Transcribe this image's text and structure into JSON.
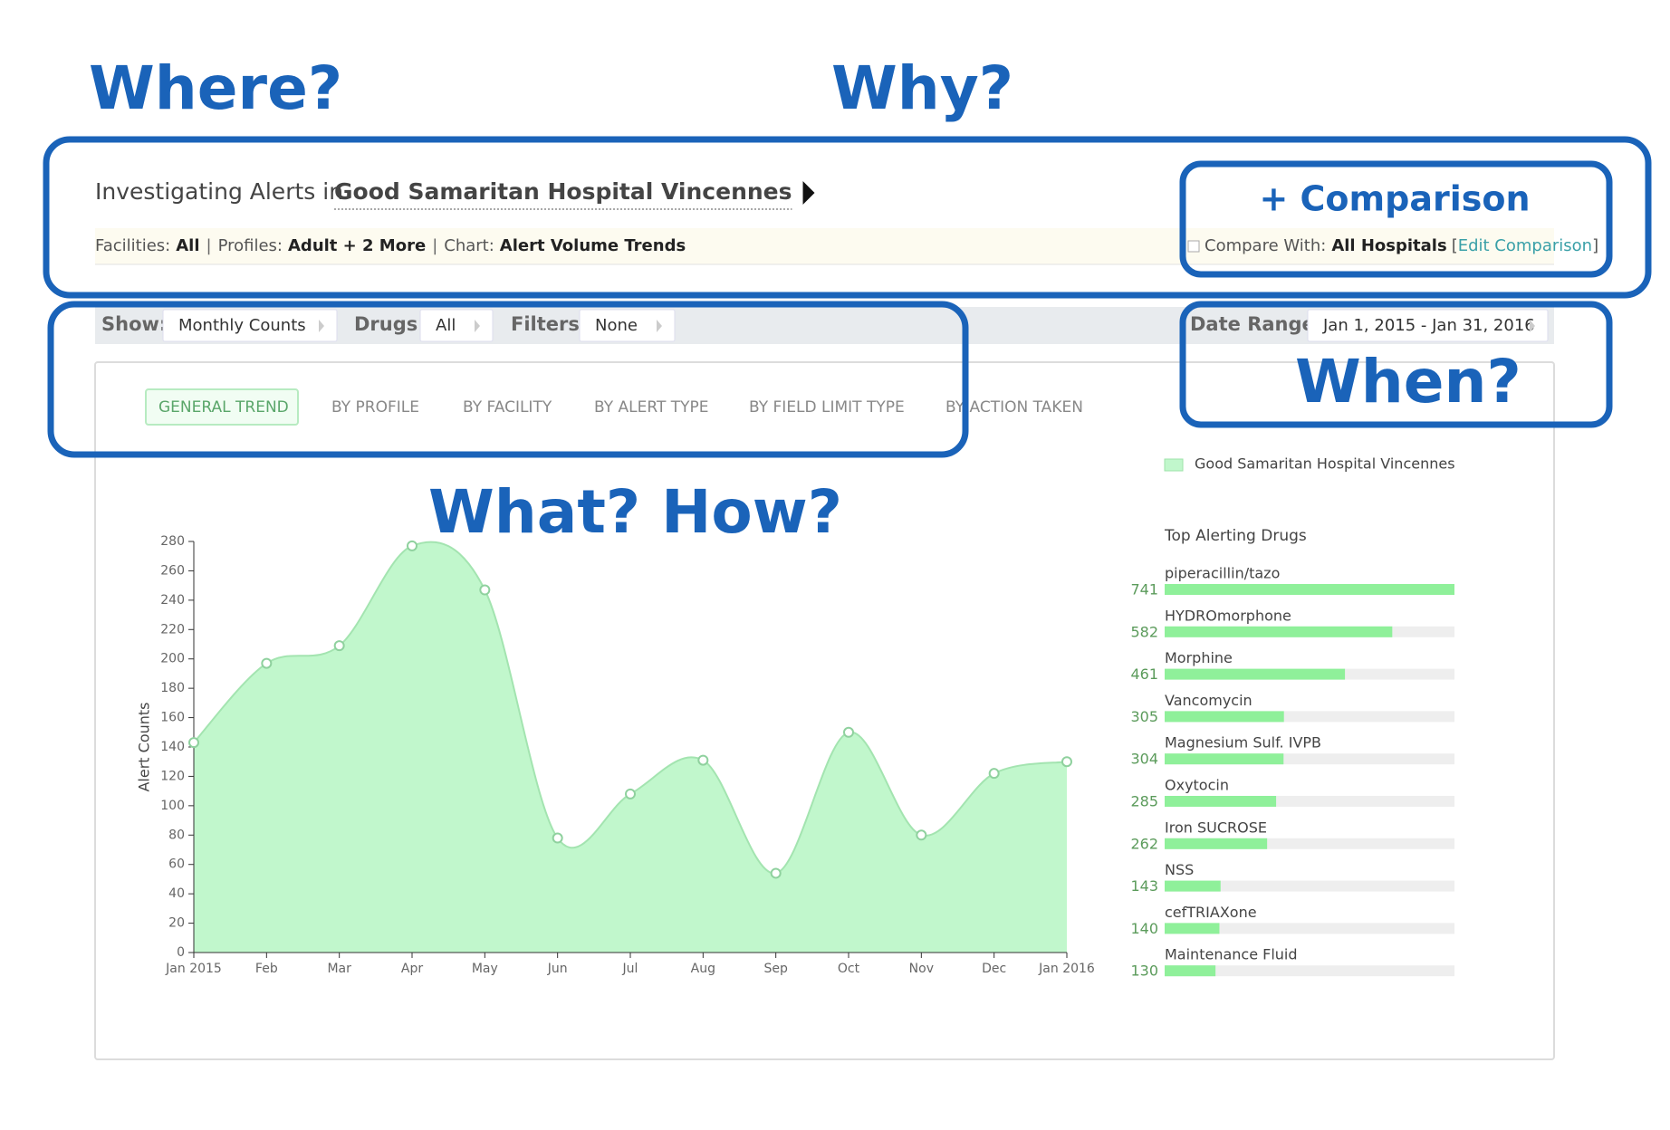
{
  "annotations": {
    "where": "Where?",
    "why": "Why?",
    "when": "When?",
    "what_how": "What? How?"
  },
  "header": {
    "title_prefix": "Investigating Alerts in",
    "hospital": "Good Samaritan Hospital Vincennes",
    "separator": "|",
    "filters": [
      {
        "label": "Facilities:",
        "value": "All"
      },
      {
        "label": "Profiles:",
        "value": "Adult + 2 More"
      },
      {
        "label": "Chart:",
        "value": "Alert Volume Trends"
      }
    ],
    "comparison_button": "+ Comparison",
    "compare": {
      "label": "Compare With:",
      "value": "All Hospitals",
      "open": "[",
      "link": "Edit Comparison",
      "close": "]"
    }
  },
  "toolbar": {
    "show": {
      "label": "Show:",
      "value": "Monthly Counts"
    },
    "drugs": {
      "label": "Drugs:",
      "value": "All"
    },
    "filters": {
      "label": "Filters:",
      "value": "None"
    },
    "date_range": {
      "label": "Date Range:",
      "value": "Jan 1, 2015 - Jan 31, 2016"
    }
  },
  "tabs": [
    "GENERAL TREND",
    "BY PROFILE",
    "BY FACILITY",
    "BY ALERT TYPE",
    "BY FIELD LIMIT TYPE",
    "BY ACTION TAKEN"
  ],
  "chart_data": {
    "type": "area",
    "y_label": "Alert Counts",
    "categories": [
      "Jan 2015",
      "Feb",
      "Mar",
      "Apr",
      "May",
      "Jun",
      "Jul",
      "Aug",
      "Sep",
      "Oct",
      "Nov",
      "Dec",
      "Jan 2016"
    ],
    "series": [
      {
        "name": "Good Samaritan Hospital Vincennes",
        "color": "#c1f7cc",
        "values": [
          143,
          197,
          209,
          277,
          247,
          78,
          108,
          131,
          54,
          150,
          80,
          122,
          130
        ]
      }
    ],
    "ylim": [
      0,
      280
    ],
    "yticks": [
      0,
      20,
      40,
      60,
      80,
      100,
      120,
      140,
      160,
      180,
      200,
      220,
      240,
      260,
      280
    ]
  },
  "top_drugs": {
    "title": "Top Alerting Drugs",
    "color": "#8ff09a",
    "names": [
      "piperacillin/tazo",
      "HYDROmorphone",
      "Morphine",
      "Vancomycin",
      "Magnesium Sulf. IVPB",
      "Oxytocin",
      "Iron SUCROSE",
      "NSS",
      "cefTRIAXone",
      "Maintenance Fluid"
    ],
    "values": [
      741,
      582,
      461,
      305,
      304,
      285,
      262,
      143,
      140,
      130
    ]
  }
}
